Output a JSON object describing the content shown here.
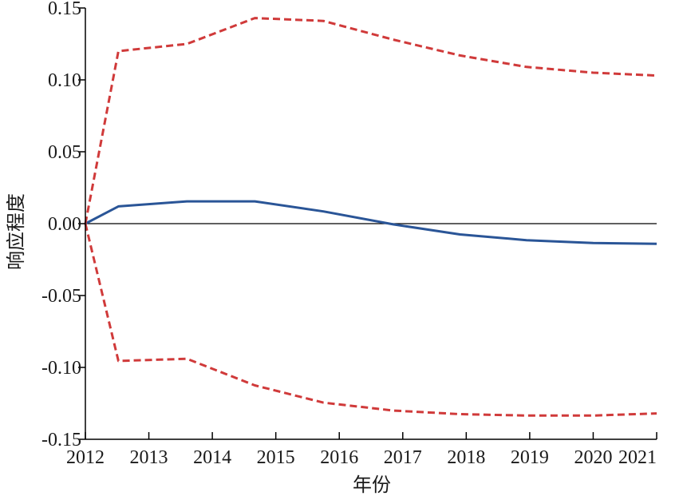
{
  "chart_data": {
    "type": "line",
    "title": "",
    "xlabel": "年份",
    "ylabel": "响应程度",
    "xlim": [
      2012,
      2021
    ],
    "ylim": [
      -0.15,
      0.15
    ],
    "x_ticks": [
      2012,
      2013,
      2014,
      2015,
      2016,
      2017,
      2018,
      2019,
      2020,
      2021
    ],
    "x_tick_labels": [
      "2012",
      "2013",
      "2014",
      "2015",
      "2016",
      "2017",
      "2018",
      "2019",
      "2020",
      "2021"
    ],
    "y_ticks": [
      0.15,
      0.1,
      0.05,
      0.0,
      -0.05,
      -0.1,
      -0.15
    ],
    "y_tick_labels": [
      "0.15",
      "0.10",
      "0.05",
      "0.00",
      "-0.05",
      "-0.10",
      "-0.15"
    ],
    "grid": false,
    "legend": "none",
    "zero_line": true,
    "series": [
      {
        "style": "solid",
        "color": "#2a5597",
        "x": [
          2012,
          2012.52,
          2013.6,
          2014.67,
          2015.75,
          2016.85,
          2017.9,
          2018.95,
          2020,
          2021
        ],
        "y": [
          0.0,
          0.012,
          0.0155,
          0.0155,
          0.0085,
          -0.0005,
          -0.0075,
          -0.0115,
          -0.0135,
          -0.014
        ]
      },
      {
        "style": "dashed",
        "color": "#d03a3a",
        "x": [
          2012,
          2012.52,
          2013.6,
          2014.67,
          2015.75,
          2016.85,
          2017.9,
          2018.95,
          2020,
          2021
        ],
        "y": [
          0.0,
          0.12,
          0.125,
          0.143,
          0.141,
          0.128,
          0.117,
          0.109,
          0.105,
          0.103
        ]
      },
      {
        "style": "dashed",
        "color": "#d03a3a",
        "x": [
          2012,
          2012.52,
          2013.6,
          2014.67,
          2015.75,
          2016.85,
          2017.9,
          2018.95,
          2020,
          2021
        ],
        "y": [
          0.0,
          -0.0955,
          -0.094,
          -0.1125,
          -0.1245,
          -0.13,
          -0.1325,
          -0.1335,
          -0.1335,
          -0.132
        ]
      }
    ]
  }
}
